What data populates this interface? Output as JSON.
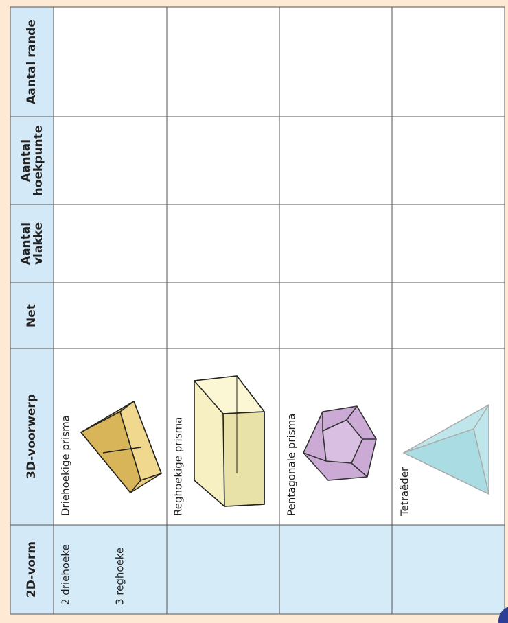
{
  "table": {
    "headers": [
      [
        "2D-vorm"
      ],
      [
        "3D-voorwerp"
      ],
      [
        "Net"
      ],
      [
        "Aantal",
        "vlakke"
      ],
      [
        "Aantal",
        "hoekpunte"
      ],
      [
        "Aantal rande"
      ]
    ],
    "rows": [
      {
        "shape_2d": [
          "2 driehoeke",
          "3 reghoeke"
        ],
        "object_3d": "Driehoekige prisma"
      },
      {
        "shape_2d": [],
        "object_3d": "Reghoekige prisma"
      },
      {
        "shape_2d": [],
        "object_3d": "Pentagonale prisma"
      },
      {
        "shape_2d": [],
        "object_3d": "Tetraëder"
      }
    ]
  }
}
